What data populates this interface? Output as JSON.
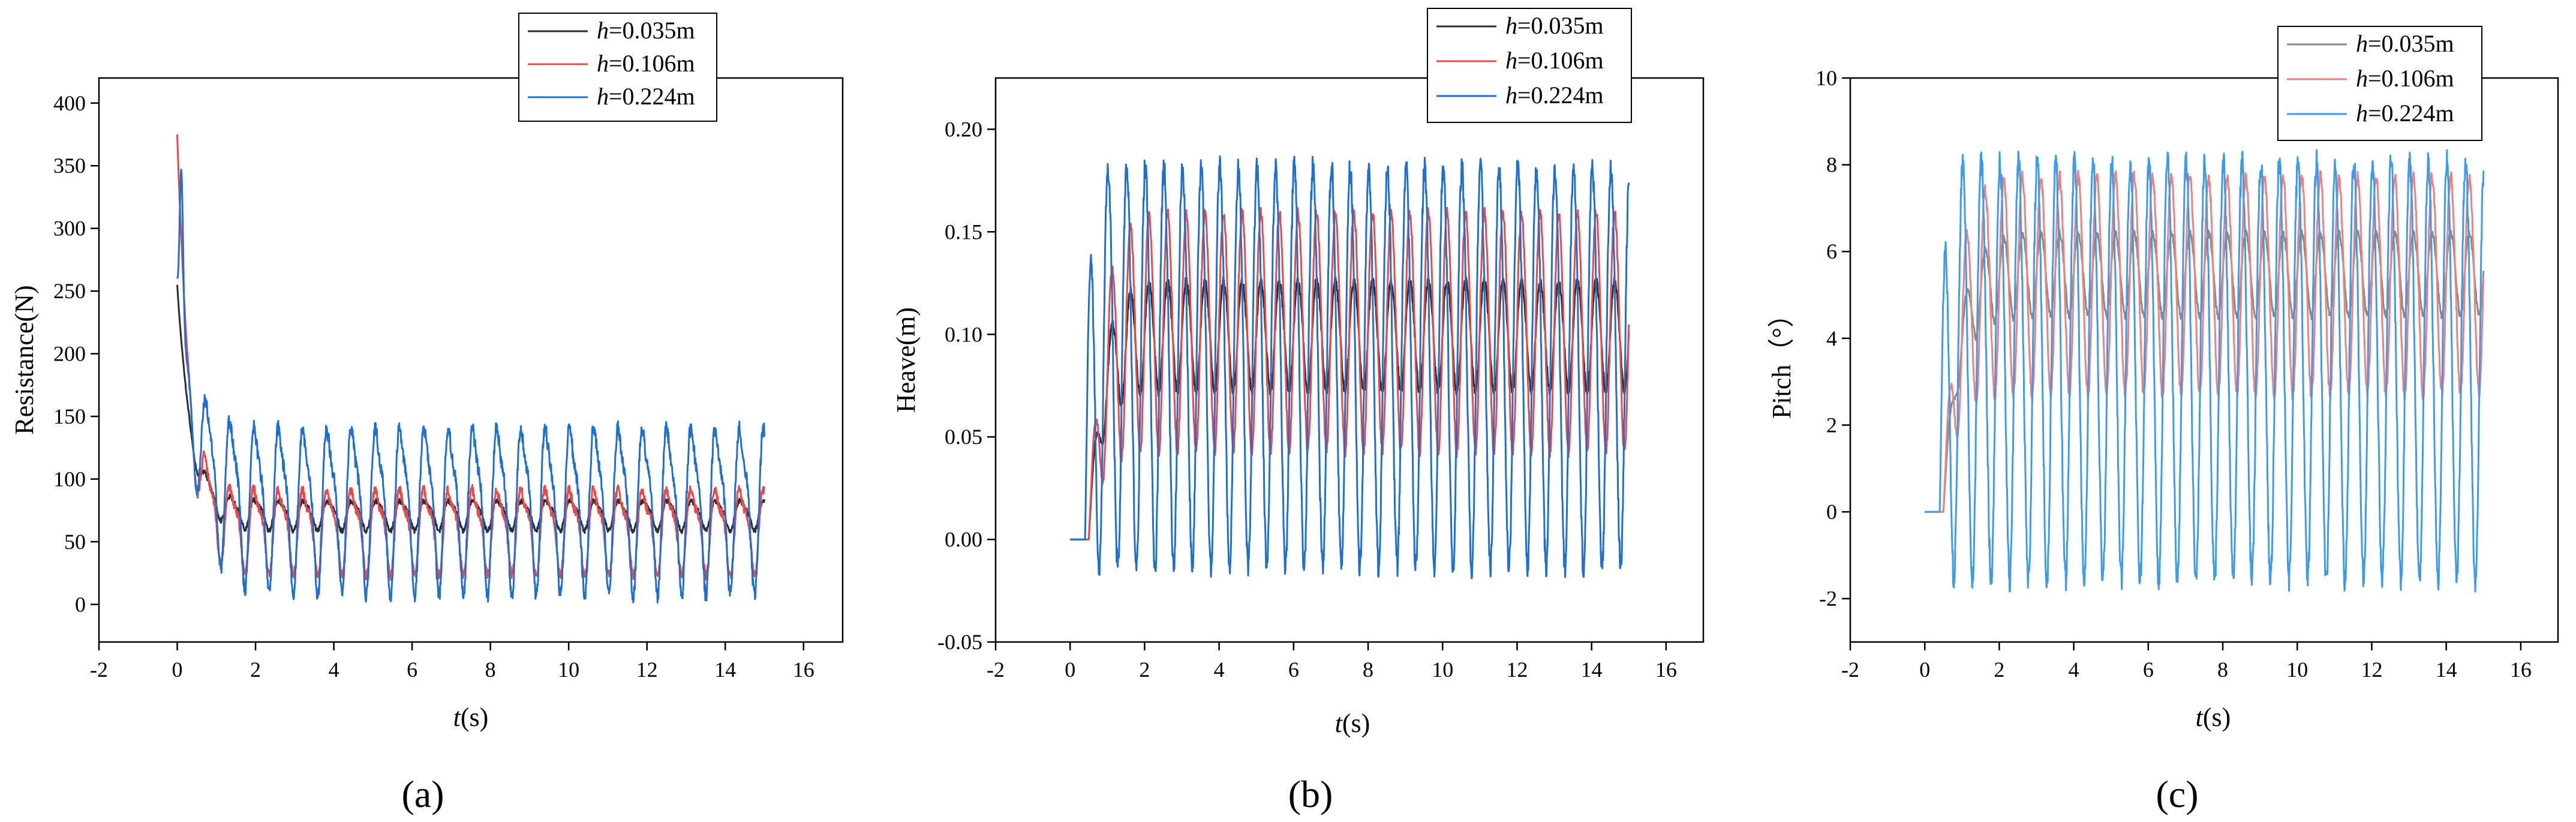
{
  "chart_data": [
    {
      "type": "line",
      "panel_label": "(a)",
      "title": "",
      "xlabel": {
        "italic": "t",
        "rest": "(s)"
      },
      "ylabel": "Resistance(N)",
      "xlim": [
        -2,
        17
      ],
      "ylim": [
        -30,
        420
      ],
      "xticks": [
        -2,
        0,
        2,
        4,
        6,
        8,
        10,
        12,
        14,
        16
      ],
      "yticks": [
        0,
        50,
        100,
        150,
        200,
        250,
        300,
        350,
        400
      ],
      "legend_position": "top-right",
      "series": [
        {
          "name": "h=0.035m",
          "legend_italic": "h",
          "legend_rest": "=0.035m",
          "color": "#2d2d3a",
          "model": {
            "x_start": 0.0,
            "x_end": 15.0,
            "flat_until": 0.0,
            "transient": {
              "start": 255,
              "end": 72,
              "tau": 0.35,
              "spike": 0
            },
            "mean": 72,
            "amp": 11,
            "period": 0.62,
            "harmonic": 0.25,
            "jitter": 2
          }
        },
        {
          "name": "h=0.106m",
          "legend_italic": "h",
          "legend_rest": "=0.106m",
          "color": "#e84a4a",
          "model": {
            "x_start": 0.0,
            "x_end": 15.0,
            "flat_until": 0.0,
            "transient": {
              "start": 375,
              "end": 62,
              "tau": 0.3,
              "spike": 0
            },
            "mean": 62,
            "amp": 30,
            "period": 0.62,
            "harmonic": 0.35,
            "jitter": 4
          }
        },
        {
          "name": "h=0.224m",
          "legend_italic": "h",
          "legend_rest": "=0.224m",
          "color": "#1f6fd1",
          "model": {
            "x_start": 0.0,
            "x_end": 15.0,
            "flat_until": 0.0,
            "transient": {
              "start": 255,
              "end": 82,
              "tau": 0.45,
              "spike": 335
            },
            "mean": 82,
            "amp": 60,
            "period": 0.62,
            "harmonic": 0.3,
            "jitter": 6
          }
        }
      ]
    },
    {
      "type": "line",
      "panel_label": "(b)",
      "title": "",
      "xlabel": {
        "italic": "t",
        "rest": "(s)"
      },
      "ylabel": "Heave(m)",
      "xlim": [
        -2,
        17
      ],
      "ylim": [
        -0.05,
        0.225
      ],
      "xticks": [
        -2,
        0,
        2,
        4,
        6,
        8,
        10,
        12,
        14,
        16
      ],
      "yticks": [
        "-0.05",
        "0.00",
        "0.05",
        "0.10",
        "0.15",
        "0.20"
      ],
      "legend_position": "top-right",
      "series": [
        {
          "name": "h=0.035m",
          "legend_italic": "h",
          "legend_rest": "=0.035m",
          "color": "#2d2d3a",
          "model": {
            "x_start": 0.0,
            "x_end": 15.0,
            "flat_until": 0.5,
            "transient": {
              "start": 0.0,
              "end": 0.1,
              "tau": 0.35,
              "spike": 0
            },
            "mean": 0.1,
            "amp": 0.027,
            "period": 0.5,
            "harmonic": 0.05,
            "jitter": 0.002
          }
        },
        {
          "name": "h=0.106m",
          "legend_italic": "h",
          "legend_rest": "=0.106m",
          "color": "#e84a4a",
          "model": {
            "x_start": 0.0,
            "x_end": 15.0,
            "flat_until": 0.5,
            "transient": {
              "start": 0.0,
              "end": 0.103,
              "tau": 0.35,
              "spike": 0
            },
            "mean": 0.103,
            "amp": 0.058,
            "period": 0.5,
            "harmonic": 0.05,
            "jitter": 0.003
          }
        },
        {
          "name": "h=0.224m",
          "legend_italic": "h",
          "legend_rest": "=0.224m",
          "color": "#1f6fd1",
          "model": {
            "x_start": 0.0,
            "x_end": 15.0,
            "flat_until": 0.4,
            "transient": {
              "start": 0.0,
              "end": 0.087,
              "tau": 0.1,
              "spike": 0
            },
            "mean": 0.087,
            "amp": 0.097,
            "period": 0.5,
            "harmonic": 0.05,
            "jitter": 0.006
          }
        }
      ]
    },
    {
      "type": "line",
      "panel_label": "(c)",
      "title": "",
      "xlabel": {
        "italic": "t",
        "rest": "(s)"
      },
      "ylabel": "Pitch（°）",
      "xlim": [
        -2,
        17
      ],
      "ylim": [
        -3,
        10
      ],
      "xticks": [
        -2,
        0,
        2,
        4,
        6,
        8,
        10,
        12,
        14,
        16
      ],
      "yticks": [
        -2,
        0,
        2,
        4,
        6,
        8,
        10
      ],
      "legend_position": "top-right",
      "series": [
        {
          "name": "h=0.035m",
          "legend_italic": "h",
          "legend_rest": "=0.035m",
          "color": "#8a8a8a",
          "model": {
            "x_start": 0.0,
            "x_end": 15.0,
            "flat_until": 0.5,
            "transient": {
              "start": 0.0,
              "end": 5.5,
              "tau": 0.4,
              "spike": 0
            },
            "mean": 5.5,
            "amp": 0.95,
            "period": 0.5,
            "harmonic": 0.05,
            "jitter": 0.08
          }
        },
        {
          "name": "h=0.106m",
          "legend_italic": "h",
          "legend_rest": "=0.106m",
          "color": "#f08080",
          "model": {
            "x_start": 0.0,
            "x_end": 15.0,
            "flat_until": 0.5,
            "transient": {
              "start": 0.0,
              "end": 5.3,
              "tau": 0.35,
              "spike": 0
            },
            "mean": 5.3,
            "amp": 2.5,
            "period": 0.5,
            "harmonic": 0.05,
            "jitter": 0.15
          }
        },
        {
          "name": "h=0.224m",
          "legend_italic": "h",
          "legend_rest": "=0.224m",
          "color": "#3d9be9",
          "model": {
            "x_start": 0.0,
            "x_end": 15.0,
            "flat_until": 0.4,
            "transient": {
              "start": 0.0,
              "end": 3.4,
              "tau": 0.1,
              "spike": 0
            },
            "mean": 3.4,
            "amp": 4.8,
            "period": 0.5,
            "harmonic": 0.05,
            "jitter": 0.3
          }
        }
      ]
    }
  ]
}
